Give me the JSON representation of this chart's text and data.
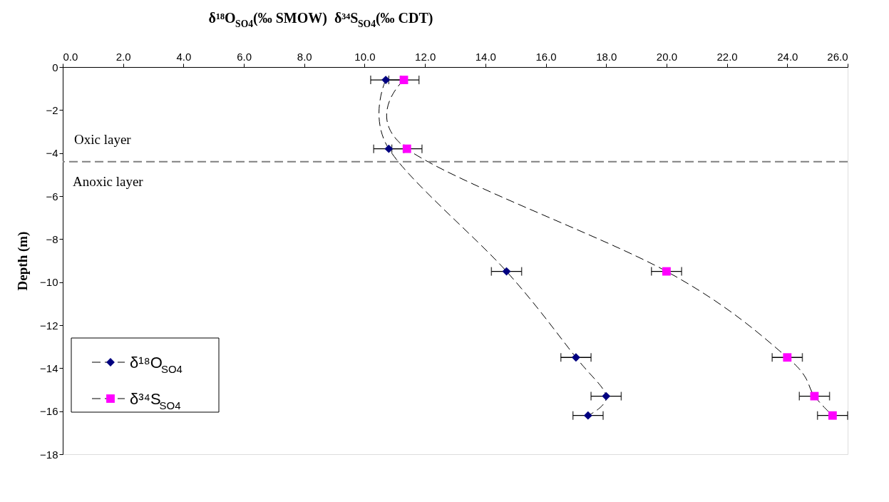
{
  "chart_data": {
    "type": "line",
    "xlabel": "δ¹⁸O$_{SO4}$(‰ SMOW)  δ³⁴S$_{SO4}$(‰ CDT)",
    "ylabel": "Depth (m)",
    "series": [
      {
        "name": "δ¹⁸O$_{SO4}$",
        "color": "#000080",
        "marker": "diamond",
        "x": [
          10.7,
          10.8,
          14.7,
          17.0,
          18.0,
          17.4
        ],
        "values": [
          -0.6,
          -3.8,
          -9.5,
          -13.5,
          -15.3,
          -16.2
        ],
        "xerrors": [
          0.5,
          0.5,
          0.5,
          0.5,
          0.5,
          0.5
        ]
      },
      {
        "name": "δ³⁴S$_{SO4}$",
        "color": "#ff00ff",
        "marker": "square",
        "x": [
          11.3,
          11.4,
          20.0,
          24.0,
          24.9,
          25.5
        ],
        "values": [
          -0.6,
          -3.8,
          -9.5,
          -13.5,
          -15.3,
          -16.2
        ],
        "xerrors": [
          0.5,
          0.5,
          0.5,
          0.5,
          0.5,
          0.5
        ]
      }
    ],
    "line_style": "dashed",
    "xlim": [
      0,
      26
    ],
    "xticks": [
      {
        "value": 0,
        "label": "0.0"
      },
      {
        "value": 2,
        "label": "2.0"
      },
      {
        "value": 4,
        "label": "4.0"
      },
      {
        "value": 6,
        "label": "6.0"
      },
      {
        "value": 8,
        "label": "8.0"
      },
      {
        "value": 10,
        "label": "10.0"
      },
      {
        "value": 12,
        "label": "12.0"
      },
      {
        "value": 14,
        "label": "14.0"
      },
      {
        "value": 16,
        "label": "16.0"
      },
      {
        "value": 18,
        "label": "18.0"
      },
      {
        "value": 20,
        "label": "20.0"
      },
      {
        "value": 22,
        "label": "22.0"
      },
      {
        "value": 24,
        "label": "24.0"
      },
      {
        "value": 26,
        "label": "26.0"
      }
    ],
    "ylim": [
      -18,
      0
    ],
    "yticks": [
      0,
      -2,
      -4,
      -6,
      -8,
      -10,
      -12,
      -14,
      -16,
      -18
    ],
    "ref_lines": [
      {
        "axis": "y",
        "value": -4.4,
        "color": "#808080",
        "line_style": "dashed"
      }
    ],
    "annotations": [
      "Oxic layer",
      "Anoxic layer"
    ],
    "legend": "bottom left",
    "grid": false
  }
}
